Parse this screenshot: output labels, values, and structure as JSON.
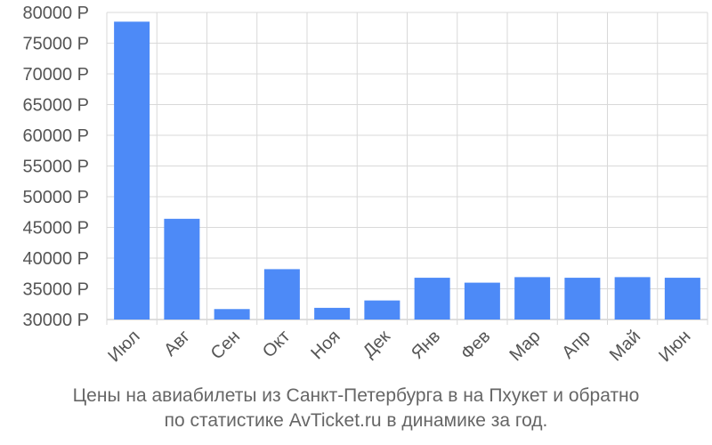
{
  "colors": {
    "bar": "#4d8af7",
    "grid": "#d9d9d9",
    "axis": "#bbbbbb",
    "text": "#555555"
  },
  "caption": {
    "line1": "Цены на авиабилеты из Санкт-Петербурга в на Пхукет и обратно",
    "line2": "по статистике AvTicket.ru в динамике за год."
  },
  "chart_data": {
    "type": "bar",
    "categories": [
      "Июл",
      "Авг",
      "Сен",
      "Окт",
      "Ноя",
      "Дек",
      "Янв",
      "Фев",
      "Мар",
      "Апр",
      "Май",
      "Июн"
    ],
    "values": [
      78500,
      46400,
      31700,
      38200,
      31900,
      33100,
      36800,
      36000,
      36900,
      36800,
      36900,
      36800
    ],
    "ylim": [
      30000,
      80000
    ],
    "yticks": [
      30000,
      35000,
      40000,
      45000,
      50000,
      55000,
      60000,
      65000,
      70000,
      75000,
      80000
    ],
    "ytick_labels": [
      "30000 Р",
      "35000 Р",
      "40000 Р",
      "45000 Р",
      "50000 Р",
      "55000 Р",
      "60000 Р",
      "65000 Р",
      "70000 Р",
      "75000 Р",
      "80000 Р"
    ],
    "grid": true,
    "legend": "none"
  }
}
